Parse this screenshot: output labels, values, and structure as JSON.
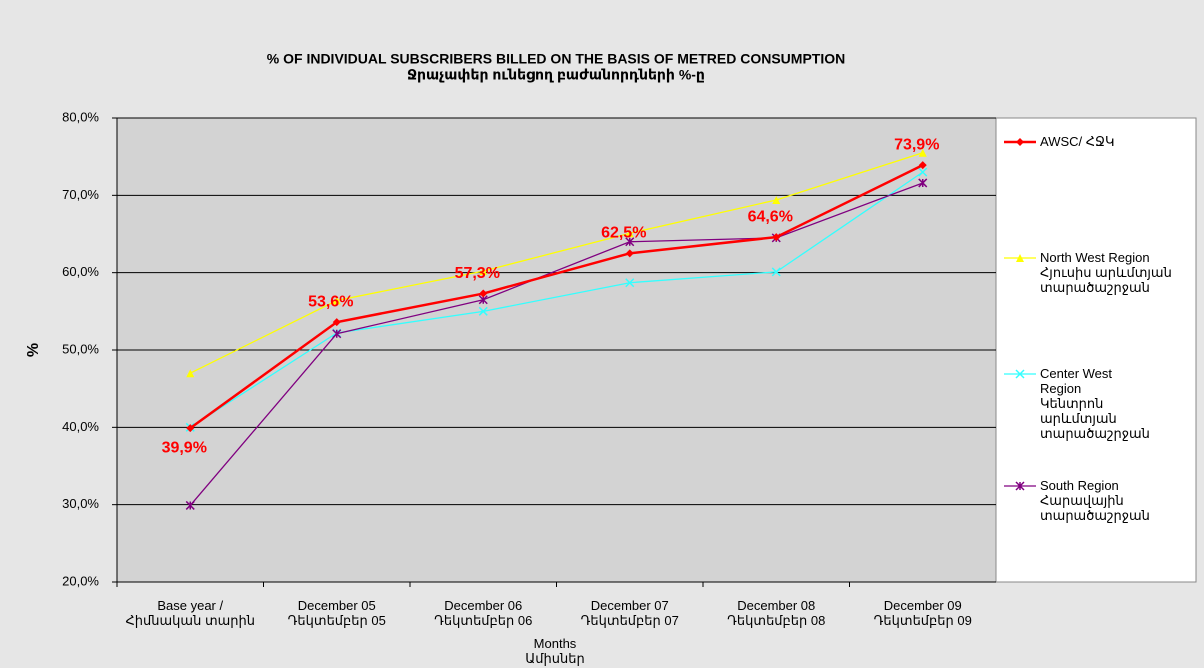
{
  "chart_data": {
    "type": "line",
    "title": "% OF INDIVIDUAL SUBSCRIBERS BILLED ON THE BASIS OF METRED CONSUMPTION",
    "subtitle": "Ջրաչափեր ունեցող բաժանորդների %-ը",
    "y_label": "%",
    "x_label": "Months\nԱմիսներ",
    "categories": [
      "Base year /\nՀիմնական տարին",
      "December 05\nԴեկտեմբեր 05",
      "December 06\nԴեկտեմբեր 06",
      "December 07\nԴեկտեմբեր 07",
      "December 08\nԴեկտեմբեր 08",
      "December 09\nԴեկտեմբեր 09"
    ],
    "series": [
      {
        "name": "AWSC/ ՀՋԿ",
        "color": "#ff0000",
        "marker": "diamond",
        "values": [
          39.9,
          53.6,
          57.3,
          62.5,
          64.6,
          73.9
        ],
        "value_labels": [
          "39,9%",
          "53,6%",
          "57,3%",
          "62,5%",
          "64,6%",
          "73,9%"
        ]
      },
      {
        "name": "North West Region\nՀյուսիս արևմտյան\nտարածաշրջան",
        "color": "#ffff00",
        "marker": "triangle",
        "values": [
          47.0,
          56.4,
          60.2,
          65.1,
          69.4,
          75.5
        ]
      },
      {
        "name": "Center West\nRegion\nԿենտրոն\nարևմտյան\nտարածաշրջան",
        "color": "#33ffff",
        "marker": "x",
        "values": [
          40.0,
          52.2,
          55.0,
          58.7,
          60.1,
          73.0
        ]
      },
      {
        "name": "South Region\nՀարավային\nտարածաշրջան",
        "color": "#800080",
        "marker": "star",
        "values": [
          29.9,
          52.1,
          56.5,
          64.0,
          64.5,
          71.6
        ]
      }
    ],
    "ylim": [
      20,
      80
    ],
    "yticks": [
      {
        "value": 20,
        "label": "20,0%"
      },
      {
        "value": 30,
        "label": "30,0%"
      },
      {
        "value": 40,
        "label": "40,0%"
      },
      {
        "value": 50,
        "label": "50,0%"
      },
      {
        "value": 60,
        "label": "60,0%"
      },
      {
        "value": 70,
        "label": "70,0%"
      },
      {
        "value": 80,
        "label": "80,0%"
      }
    ],
    "grid": true
  }
}
